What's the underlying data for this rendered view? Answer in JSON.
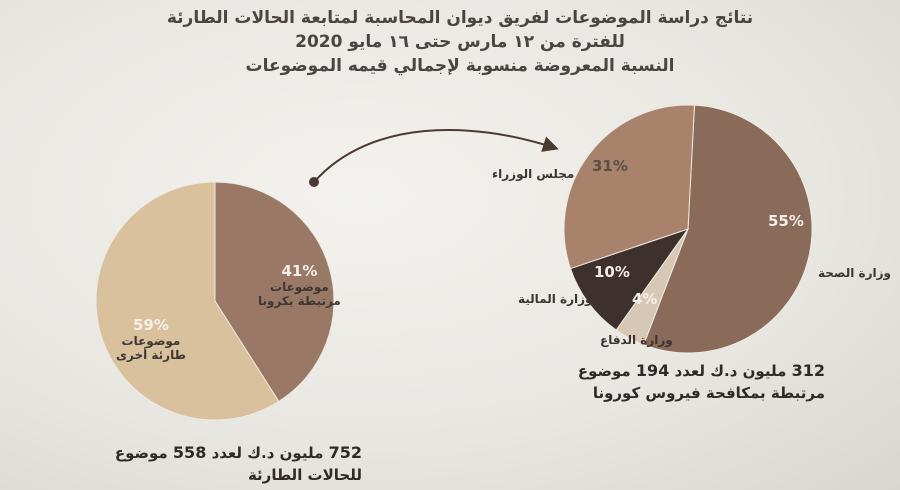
{
  "title": {
    "line1": "نتائج دراسة الموضوعات لفريق ديوان المحاسبة لمتابعة الحالات الطارئة",
    "line2": "للفترة من ١٢ مارس حتى ١٦ مايو 2020",
    "line3": "النسبة المعروضة منسوبة لإجمالي قيمه الموضوعات"
  },
  "chart_data": [
    {
      "type": "pie",
      "slices": [
        {
          "name": "موضوعات مرتبطة بكرونا",
          "name_line1": "موضوعات",
          "name_line2": "مرتبطة بكرونا",
          "value": 41,
          "label": "41%",
          "color": "#9a7866"
        },
        {
          "name": "موضوعات طارئة أخرى",
          "name_line1": "موضوعات",
          "name_line2": "طارئة أخرى",
          "value": 59,
          "label": "59%",
          "color": "#d8c19c"
        }
      ],
      "caption": {
        "amount": "752",
        "text_a": "مليون د.ك لعدد",
        "count": "558",
        "text_b": "موضوع",
        "line2": "للحالات الطارئة"
      }
    },
    {
      "type": "pie",
      "slices": [
        {
          "name": "وزارة الصحة",
          "value": 55,
          "label": "55%",
          "color": "#8a6a59"
        },
        {
          "name": "وزارة الدفاع",
          "value": 4,
          "label": "4%",
          "color": "#d6c8b4"
        },
        {
          "name": "وزارة المالية",
          "value": 10,
          "label": "10%",
          "color": "#3e302d"
        },
        {
          "name": "مجلس الوزراء",
          "value": 31,
          "label": "31%",
          "color": "#a8826b"
        }
      ],
      "caption": {
        "amount": "312",
        "text_a": "مليون د.ك لعدد",
        "count": "194",
        "text_b": "موضوع",
        "line2": "مرتبطة بمكافحة فيروس كورونا"
      }
    }
  ]
}
